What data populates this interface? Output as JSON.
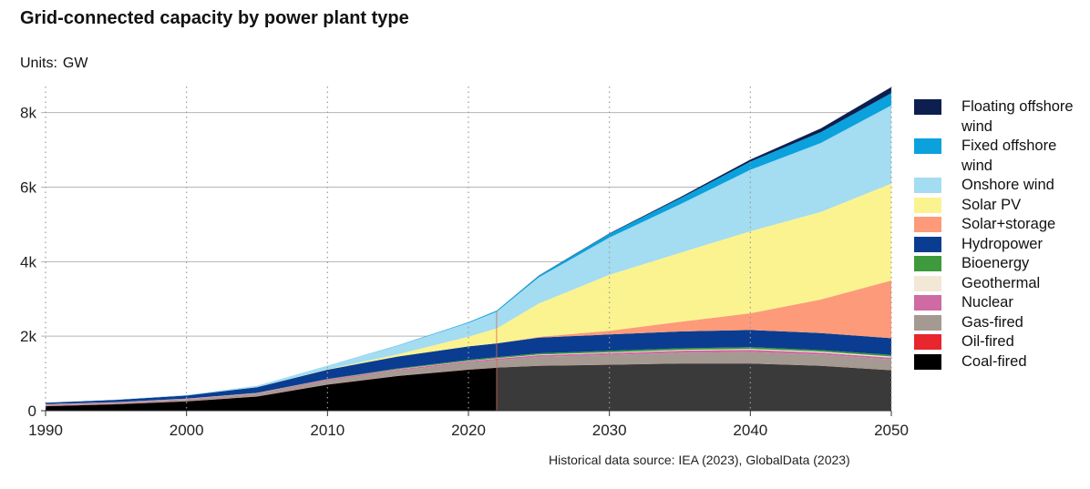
{
  "title": "Grid-connected capacity by power plant type",
  "units_label": "Units:",
  "units_value": "GW",
  "source": "Historical data source: IEA (2023), GlobalData (2023)",
  "legend": [
    {
      "label": "Floating offshore wind",
      "color": "#0d1f4f"
    },
    {
      "label": "Fixed offshore wind",
      "color": "#0aa1dd"
    },
    {
      "label": "Onshore wind",
      "color": "#a4dcf1"
    },
    {
      "label": "Solar PV",
      "color": "#fbf38f"
    },
    {
      "label": "Solar+storage",
      "color": "#fd9a7a"
    },
    {
      "label": "Hydropower",
      "color": "#0a3d91"
    },
    {
      "label": "Bioenergy",
      "color": "#3d9a3d"
    },
    {
      "label": "Geothermal",
      "color": "#f3e7d6"
    },
    {
      "label": "Nuclear",
      "color": "#cf6aa2"
    },
    {
      "label": "Gas-fired",
      "color": "#a49a92"
    },
    {
      "label": "Oil-fired",
      "color": "#e8262d"
    },
    {
      "label": "Coal-fired",
      "color": "#000000"
    }
  ],
  "chart_data": {
    "type": "area",
    "stacked": true,
    "x": [
      1990,
      1995,
      2000,
      2005,
      2010,
      2015,
      2020,
      2022,
      2025,
      2030,
      2035,
      2040,
      2045,
      2050
    ],
    "xticks": [
      "1990",
      "2000",
      "2010",
      "2020",
      "2030",
      "2040",
      "2050"
    ],
    "yticks": [
      "0",
      "2k",
      "4k",
      "6k",
      "8k"
    ],
    "ylim": [
      0,
      8700
    ],
    "xlim": [
      1990,
      2050
    ],
    "historical_until": 2022,
    "projection_shading": "darker after 2022",
    "grid": "horizontal solid gridlines; vertical dotted gridlines every 10 years",
    "legend_position": "right",
    "series": [
      {
        "name": "Coal-fired",
        "values": [
          120,
          170,
          250,
          380,
          700,
          930,
          1100,
          1150,
          1200,
          1230,
          1260,
          1260,
          1200,
          1080
        ]
      },
      {
        "name": "Oil-fired",
        "values": [
          5,
          5,
          5,
          5,
          5,
          5,
          5,
          5,
          5,
          5,
          5,
          5,
          5,
          5
        ]
      },
      {
        "name": "Gas-fired",
        "values": [
          20,
          25,
          40,
          60,
          100,
          140,
          180,
          200,
          240,
          260,
          290,
          310,
          300,
          290
        ]
      },
      {
        "name": "Nuclear",
        "values": [
          20,
          20,
          20,
          20,
          30,
          35,
          40,
          40,
          45,
          50,
          55,
          60,
          55,
          50
        ]
      },
      {
        "name": "Geothermal",
        "values": [
          5,
          5,
          5,
          5,
          5,
          5,
          10,
          10,
          15,
          20,
          20,
          25,
          25,
          30
        ]
      },
      {
        "name": "Bioenergy",
        "values": [
          5,
          5,
          5,
          10,
          10,
          20,
          30,
          30,
          35,
          40,
          45,
          45,
          40,
          40
        ]
      },
      {
        "name": "Hydropower",
        "values": [
          40,
          60,
          80,
          150,
          250,
          320,
          360,
          370,
          420,
          440,
          450,
          460,
          460,
          450
        ]
      },
      {
        "name": "Solar+storage",
        "values": [
          0,
          0,
          0,
          0,
          0,
          0,
          0,
          0,
          20,
          100,
          260,
          450,
          900,
          1550
        ]
      },
      {
        "name": "Solar PV",
        "values": [
          0,
          0,
          0,
          0,
          10,
          60,
          260,
          400,
          900,
          1500,
          1850,
          2200,
          2350,
          2600
        ]
      },
      {
        "name": "Onshore wind",
        "values": [
          0,
          10,
          15,
          40,
          100,
          230,
          370,
          450,
          700,
          1000,
          1300,
          1650,
          1850,
          2100
        ]
      },
      {
        "name": "Fixed offshore wind",
        "values": [
          0,
          0,
          0,
          0,
          0,
          10,
          20,
          30,
          45,
          100,
          160,
          220,
          290,
          330
        ]
      },
      {
        "name": "Floating offshore wind",
        "values": [
          0,
          0,
          0,
          0,
          0,
          0,
          0,
          0,
          5,
          15,
          30,
          55,
          100,
          160
        ]
      }
    ]
  }
}
